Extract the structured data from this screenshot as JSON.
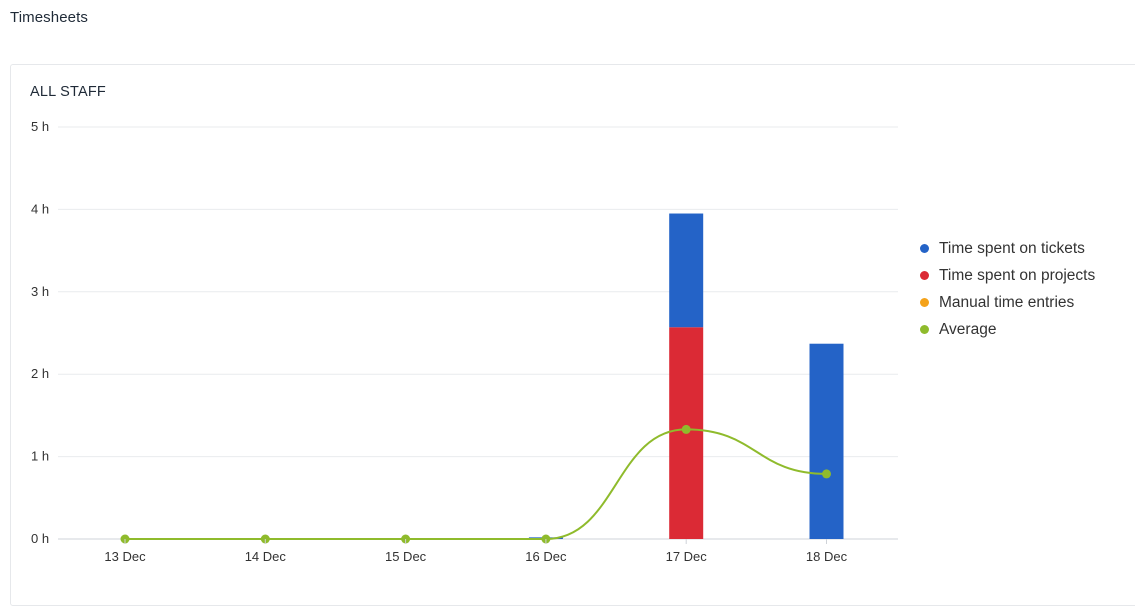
{
  "page": {
    "title": "Timesheets"
  },
  "card": {
    "title": "ALL STAFF"
  },
  "legend": [
    {
      "label": "Time spent on tickets",
      "color": "#2463c7"
    },
    {
      "label": "Time spent on projects",
      "color": "#db2a35"
    },
    {
      "label": "Manual time entries",
      "color": "#f4a21a"
    },
    {
      "label": "Average",
      "color": "#8fbb2c"
    }
  ],
  "chart_data": {
    "type": "bar",
    "stacked": true,
    "categories": [
      "13 Dec",
      "14 Dec",
      "15 Dec",
      "16 Dec",
      "17 Dec",
      "18 Dec"
    ],
    "series": [
      {
        "name": "Time spent on tickets",
        "color": "#2463c7",
        "values": [
          0,
          0,
          0,
          0.02,
          1.38,
          2.37
        ]
      },
      {
        "name": "Time spent on projects",
        "color": "#db2a35",
        "values": [
          0,
          0,
          0,
          0,
          2.57,
          0
        ]
      },
      {
        "name": "Manual time entries",
        "color": "#f4a21a",
        "values": [
          0,
          0,
          0,
          0,
          0,
          0
        ]
      },
      {
        "name": "Average",
        "type": "line",
        "color": "#8fbb2c",
        "values": [
          0,
          0,
          0,
          0,
          1.33,
          0.79
        ]
      }
    ],
    "yticks": [
      "0 h",
      "1 h",
      "2 h",
      "3 h",
      "4 h",
      "5 h"
    ],
    "ylim": [
      0,
      5
    ],
    "grid": true,
    "legend_position": "right"
  }
}
